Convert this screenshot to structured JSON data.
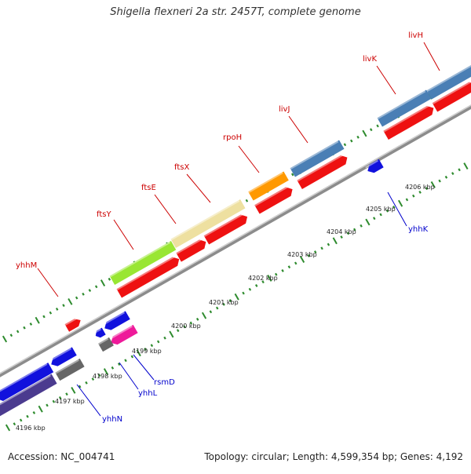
{
  "title": "Shigella flexneri 2a str. 2457T, complete genome",
  "footer": {
    "accession": "Accession: NC_004741",
    "stats": "Topology: circular; Length: 4,599,354 bp; Genes: 4,192"
  },
  "colors": {
    "backbone": "#8c8c8c",
    "tick": "#2e8b2e",
    "gene_label_forward": "#cc0000",
    "gene_label_reverse": "#0000cc",
    "cds": "#ee1111",
    "forward_genes": "#ee1111",
    "reverse_genes": "#1111dd",
    "steel_blue": "#4a7fb5",
    "khaki": "#eee0a0",
    "lime": "#99e633",
    "orange": "#ff9900",
    "magenta": "#ee1a9a",
    "gray": "#666666",
    "navy": "#4b3b8f"
  },
  "kbp_ticks": [
    "4196 kbp",
    "4197 kbp",
    "4198 kbp",
    "4199 kbp",
    "4200 kbp",
    "4201 kbp",
    "4202 kbp",
    "4203 kbp",
    "4204 kbp",
    "4205 kbp",
    "4206 kbp"
  ],
  "forward_gene_labels": [
    "yhhM",
    "ftsY",
    "ftsE",
    "ftsX",
    "rpoH",
    "livJ",
    "livK",
    "livH"
  ],
  "reverse_gene_labels": [
    "yhhN",
    "yhhL",
    "rsmD",
    "yhhK"
  ]
}
